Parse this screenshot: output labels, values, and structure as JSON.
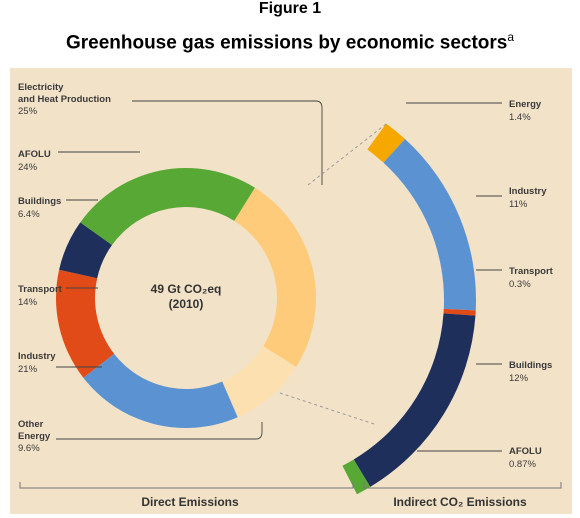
{
  "figure": {
    "number": "Figure 1",
    "title": "Greenhouse gas emissions by economic sectors",
    "footnote_marker": "a"
  },
  "chart_data": [
    {
      "type": "pie",
      "name": "direct",
      "center_label": "49 Gt CO₂eq",
      "center_sub": "(2010)",
      "footer_label": "Direct Emissions",
      "slices": [
        {
          "label_line1": "Electricity",
          "label_line2": "and Heat Production",
          "value": 25,
          "value_text": "25%",
          "color": "#fecb7b"
        },
        {
          "label_line1": "Other",
          "label_line2": "Energy",
          "value": 9.6,
          "value_text": "9.6%",
          "color": "#fde0b0"
        },
        {
          "label_line1": "Industry",
          "label_line2": "",
          "value": 21,
          "value_text": "21%",
          "color": "#5b93d2"
        },
        {
          "label_line1": "Transport",
          "label_line2": "",
          "value": 14,
          "value_text": "14%",
          "color": "#e04b18"
        },
        {
          "label_line1": "Buildings",
          "label_line2": "",
          "value": 6.4,
          "value_text": "6.4%",
          "color": "#1f2f5c"
        },
        {
          "label_line1": "AFOLU",
          "label_line2": "",
          "value": 24,
          "value_text": "24%",
          "color": "#58a835"
        }
      ]
    },
    {
      "type": "pie",
      "name": "indirect",
      "footer_label": "Indirect CO₂ Emissions",
      "slices": [
        {
          "label": "Energy",
          "value": 1.4,
          "value_text": "1.4%",
          "color": "#f6a800"
        },
        {
          "label": "Industry",
          "value": 11,
          "value_text": "11%",
          "color": "#5b93d2"
        },
        {
          "label": "Transport",
          "value": 0.3,
          "value_text": "0.3%",
          "color": "#e04b18"
        },
        {
          "label": "Buildings",
          "value": 12,
          "value_text": "12%",
          "color": "#1f2f5c"
        },
        {
          "label": "AFOLU",
          "value": 0.87,
          "value_text": "0.87%",
          "color": "#58a835"
        }
      ]
    }
  ]
}
